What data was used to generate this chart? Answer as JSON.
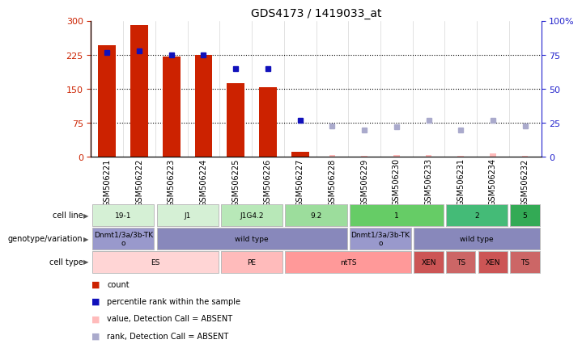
{
  "title": "GDS4173 / 1419033_at",
  "samples": [
    "GSM506221",
    "GSM506222",
    "GSM506223",
    "GSM506224",
    "GSM506225",
    "GSM506226",
    "GSM506227",
    "GSM506228",
    "GSM506229",
    "GSM506230",
    "GSM506233",
    "GSM506231",
    "GSM506234",
    "GSM506232"
  ],
  "count_values": [
    247,
    290,
    222,
    224,
    163,
    153,
    12,
    null,
    null,
    null,
    null,
    null,
    null,
    null
  ],
  "count_absent": [
    null,
    null,
    null,
    null,
    null,
    null,
    null,
    5,
    3,
    5,
    4,
    2,
    8,
    3
  ],
  "percentile_values": [
    77,
    78,
    75,
    75,
    65,
    65,
    27,
    null,
    null,
    null,
    null,
    null,
    null,
    null
  ],
  "percentile_absent": [
    null,
    null,
    null,
    null,
    null,
    null,
    null,
    23,
    20,
    22,
    27,
    20,
    27,
    23
  ],
  "ylim_left": [
    0,
    300
  ],
  "ylim_right": [
    0,
    100
  ],
  "yticks_left": [
    0,
    75,
    150,
    225,
    300
  ],
  "yticks_right": [
    0,
    25,
    50,
    75,
    100
  ],
  "cell_line_groups": [
    {
      "label": "19-1",
      "start": 0,
      "end": 2,
      "color": "#d5f0d5"
    },
    {
      "label": "J1",
      "start": 2,
      "end": 4,
      "color": "#d5f0d5"
    },
    {
      "label": "J1G4.2",
      "start": 4,
      "end": 6,
      "color": "#b8e8b8"
    },
    {
      "label": "9.2",
      "start": 6,
      "end": 8,
      "color": "#9cdd9c"
    },
    {
      "label": "1",
      "start": 8,
      "end": 11,
      "color": "#66cc66"
    },
    {
      "label": "2",
      "start": 11,
      "end": 13,
      "color": "#44bb77"
    },
    {
      "label": "5",
      "start": 13,
      "end": 14,
      "color": "#33aa55"
    }
  ],
  "genotype_groups": [
    {
      "label": "Dnmt1/3a/3b-TK\no",
      "start": 0,
      "end": 2,
      "color": "#9999cc"
    },
    {
      "label": "wild type",
      "start": 2,
      "end": 8,
      "color": "#8888bb"
    },
    {
      "label": "Dnmt1/3a/3b-TK\no",
      "start": 8,
      "end": 10,
      "color": "#9999cc"
    },
    {
      "label": "wild type",
      "start": 10,
      "end": 14,
      "color": "#8888bb"
    }
  ],
  "celltype_groups": [
    {
      "label": "ES",
      "start": 0,
      "end": 4,
      "color": "#ffd5d5"
    },
    {
      "label": "PE",
      "start": 4,
      "end": 6,
      "color": "#ffbbbb"
    },
    {
      "label": "ntTS",
      "start": 6,
      "end": 10,
      "color": "#ff9999"
    },
    {
      "label": "XEN",
      "start": 10,
      "end": 11,
      "color": "#cc5555"
    },
    {
      "label": "TS",
      "start": 11,
      "end": 12,
      "color": "#cc6666"
    },
    {
      "label": "XEN",
      "start": 12,
      "end": 13,
      "color": "#cc5555"
    },
    {
      "label": "TS",
      "start": 13,
      "end": 14,
      "color": "#cc6666"
    }
  ],
  "bar_color": "#cc2200",
  "bar_absent_color": "#ffbbbb",
  "dot_color": "#1111bb",
  "dot_absent_color": "#aaaacc",
  "left_axis_color": "#cc2200",
  "right_axis_color": "#2222cc",
  "legend_items": [
    {
      "color": "#cc2200",
      "label": "count"
    },
    {
      "color": "#1111bb",
      "label": "percentile rank within the sample"
    },
    {
      "color": "#ffbbbb",
      "label": "value, Detection Call = ABSENT"
    },
    {
      "color": "#aaaacc",
      "label": "rank, Detection Call = ABSENT"
    }
  ],
  "row_labels": [
    "cell line",
    "genotype/variation",
    "cell type"
  ]
}
